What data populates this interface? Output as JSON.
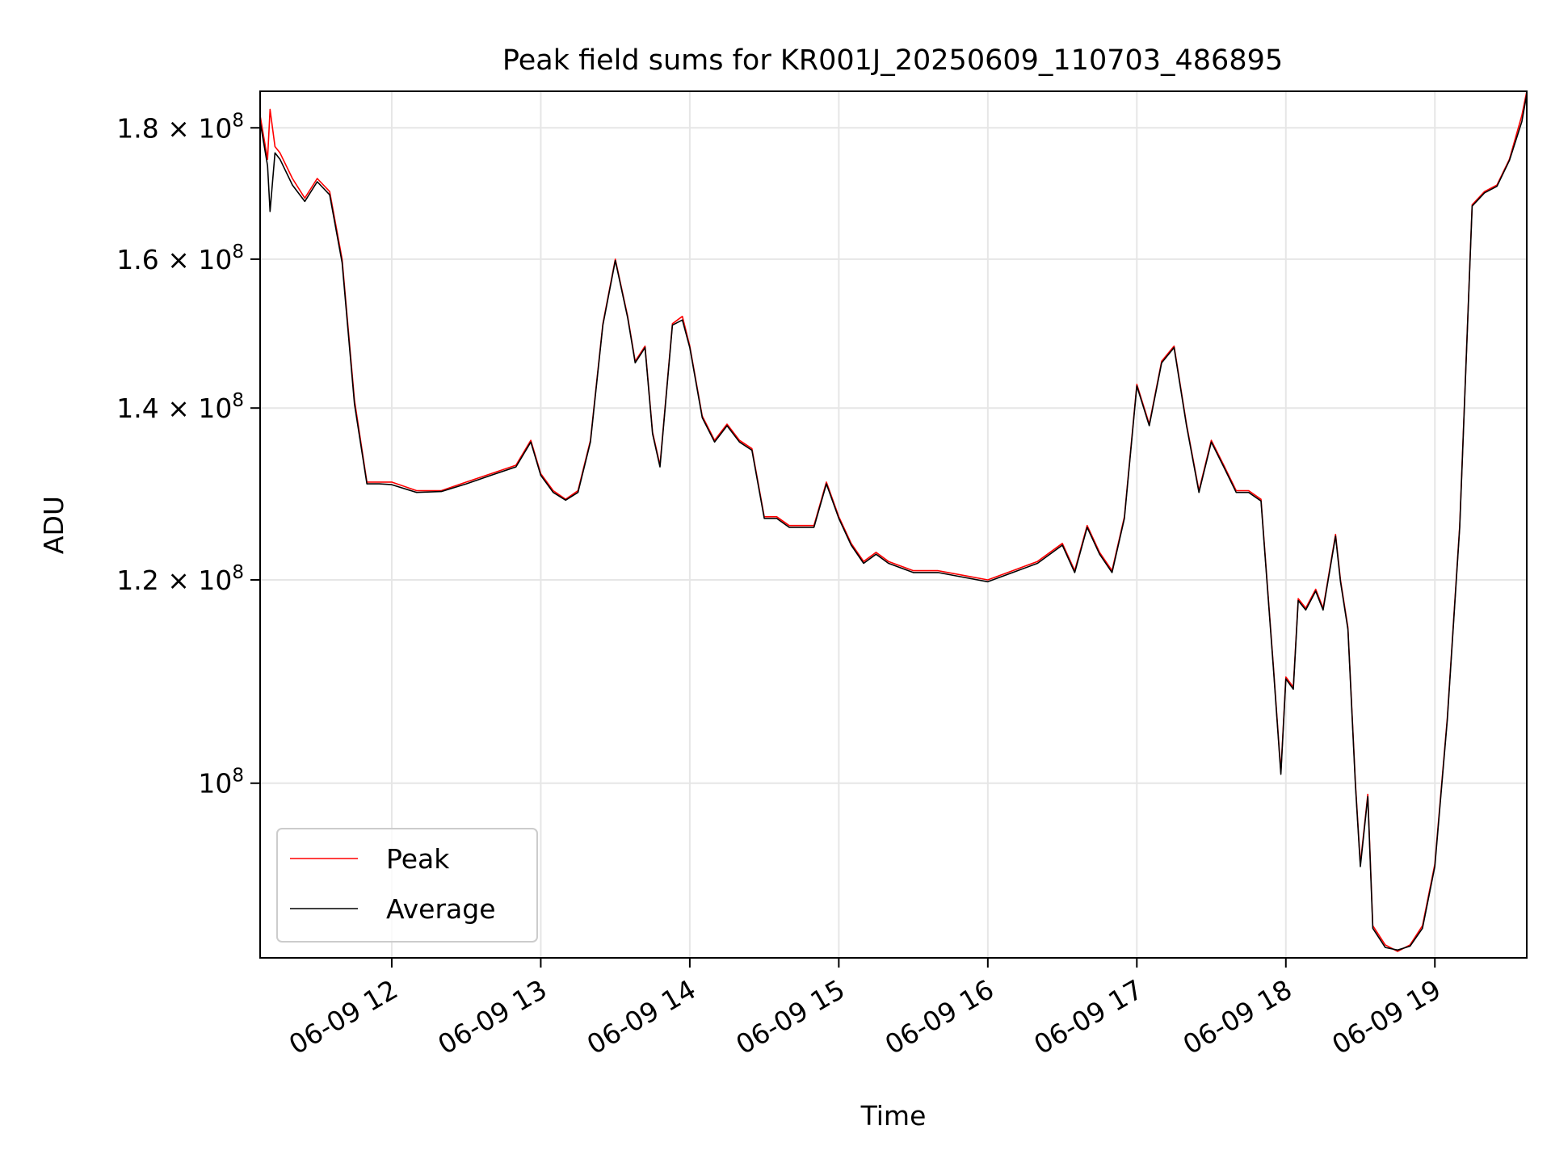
{
  "chart_data": {
    "type": "line",
    "title": "Peak field sums for KR001J_20250609_110703_486895",
    "xlabel": "Time",
    "ylabel": "ADU",
    "x_ticks": [
      "06-09 12",
      "06-09 13",
      "06-09 14",
      "06-09 15",
      "06-09 16",
      "06-09 17",
      "06-09 18",
      "06-09 19"
    ],
    "y_scale": "log",
    "y_ticks": [
      {
        "value": 100000000,
        "mant": "10",
        "exp": "8"
      },
      {
        "value": 120000000,
        "mant": "1.2 × 10",
        "exp": "8"
      },
      {
        "value": 140000000,
        "mant": "1.4 × 10",
        "exp": "8"
      },
      {
        "value": 160000000,
        "mant": "1.6 × 10",
        "exp": "8"
      },
      {
        "value": 180000000,
        "mant": "1.8 × 10",
        "exp": "8"
      }
    ],
    "xlim": [
      "2025-06-09 11:07",
      "2025-06-09 19:37"
    ],
    "ylim": [
      85500000,
      186000000
    ],
    "grid": true,
    "legend_position": "lower-left",
    "colors": {
      "peak": "#ff0000",
      "average": "#000000"
    },
    "series": [
      {
        "name": "Peak",
        "x": [
          "2025-06-09 11:07",
          "2025-06-09 11:10",
          "2025-06-09 11:11",
          "2025-06-09 11:13",
          "2025-06-09 11:15",
          "2025-06-09 11:20",
          "2025-06-09 11:25",
          "2025-06-09 11:30",
          "2025-06-09 11:35",
          "2025-06-09 11:40",
          "2025-06-09 11:45",
          "2025-06-09 11:50",
          "2025-06-09 11:55",
          "2025-06-09 12:00",
          "2025-06-09 12:10",
          "2025-06-09 12:20",
          "2025-06-09 12:30",
          "2025-06-09 12:40",
          "2025-06-09 12:50",
          "2025-06-09 12:56",
          "2025-06-09 13:00",
          "2025-06-09 13:05",
          "2025-06-09 13:10",
          "2025-06-09 13:15",
          "2025-06-09 13:20",
          "2025-06-09 13:25",
          "2025-06-09 13:30",
          "2025-06-09 13:35",
          "2025-06-09 13:38",
          "2025-06-09 13:42",
          "2025-06-09 13:45",
          "2025-06-09 13:48",
          "2025-06-09 13:53",
          "2025-06-09 13:57",
          "2025-06-09 14:00",
          "2025-06-09 14:05",
          "2025-06-09 14:10",
          "2025-06-09 14:15",
          "2025-06-09 14:20",
          "2025-06-09 14:25",
          "2025-06-09 14:30",
          "2025-06-09 14:35",
          "2025-06-09 14:40",
          "2025-06-09 14:45",
          "2025-06-09 14:50",
          "2025-06-09 14:55",
          "2025-06-09 15:00",
          "2025-06-09 15:05",
          "2025-06-09 15:10",
          "2025-06-09 15:15",
          "2025-06-09 15:20",
          "2025-06-09 15:30",
          "2025-06-09 15:40",
          "2025-06-09 15:50",
          "2025-06-09 16:00",
          "2025-06-09 16:10",
          "2025-06-09 16:20",
          "2025-06-09 16:30",
          "2025-06-09 16:35",
          "2025-06-09 16:40",
          "2025-06-09 16:45",
          "2025-06-09 16:50",
          "2025-06-09 16:55",
          "2025-06-09 17:00",
          "2025-06-09 17:05",
          "2025-06-09 17:10",
          "2025-06-09 17:15",
          "2025-06-09 17:20",
          "2025-06-09 17:25",
          "2025-06-09 17:30",
          "2025-06-09 17:35",
          "2025-06-09 17:40",
          "2025-06-09 17:45",
          "2025-06-09 17:50",
          "2025-06-09 17:55",
          "2025-06-09 17:58",
          "2025-06-09 18:00",
          "2025-06-09 18:03",
          "2025-06-09 18:05",
          "2025-06-09 18:08",
          "2025-06-09 18:12",
          "2025-06-09 18:15",
          "2025-06-09 18:20",
          "2025-06-09 18:22",
          "2025-06-09 18:25",
          "2025-06-09 18:28",
          "2025-06-09 18:30",
          "2025-06-09 18:33",
          "2025-06-09 18:35",
          "2025-06-09 18:40",
          "2025-06-09 18:45",
          "2025-06-09 18:50",
          "2025-06-09 18:55",
          "2025-06-09 19:00",
          "2025-06-09 19:05",
          "2025-06-09 19:10",
          "2025-06-09 19:15",
          "2025-06-09 19:20",
          "2025-06-09 19:25",
          "2025-06-09 19:30",
          "2025-06-09 19:35",
          "2025-06-09 19:37"
        ],
        "y": [
          182000000,
          175000000,
          183000000,
          177000000,
          176000000,
          172000000,
          169000000,
          172000000,
          170000000,
          160000000,
          141000000,
          131000000,
          131000000,
          131000000,
          130000000,
          130000000,
          131000000,
          132000000,
          133000000,
          136000000,
          132000000,
          130000000,
          129000000,
          130000000,
          136000000,
          151000000,
          160000000,
          152000000,
          146000000,
          148000000,
          137000000,
          133000000,
          151000000,
          152000000,
          148000000,
          139000000,
          136000000,
          138000000,
          136000000,
          135000000,
          127000000,
          127000000,
          126000000,
          126000000,
          126000000,
          131000000,
          127000000,
          124000000,
          122000000,
          123000000,
          122000000,
          121000000,
          121000000,
          120500000,
          120000000,
          121000000,
          122000000,
          124000000,
          121000000,
          126000000,
          123000000,
          121000000,
          127000000,
          143000000,
          138000000,
          146000000,
          148000000,
          138000000,
          130000000,
          136000000,
          133000000,
          130000000,
          130000000,
          129000000,
          111000000,
          101000000,
          110000000,
          109000000,
          118000000,
          117000000,
          119000000,
          117000000,
          125000000,
          120000000,
          115000000,
          100000000,
          93000000,
          99000000,
          88000000,
          86500000,
          86000000,
          86500000,
          88000000,
          93000000,
          106000000,
          126000000,
          168000000,
          170000000,
          171000000,
          175000000,
          182000000,
          186000000
        ]
      },
      {
        "name": "Average",
        "x": [
          "2025-06-09 11:07",
          "2025-06-09 11:10",
          "2025-06-09 11:11",
          "2025-06-09 11:13",
          "2025-06-09 11:15",
          "2025-06-09 11:20",
          "2025-06-09 11:25",
          "2025-06-09 11:30",
          "2025-06-09 11:35",
          "2025-06-09 11:40",
          "2025-06-09 11:45",
          "2025-06-09 11:50",
          "2025-06-09 11:55",
          "2025-06-09 12:00",
          "2025-06-09 12:10",
          "2025-06-09 12:20",
          "2025-06-09 12:30",
          "2025-06-09 12:40",
          "2025-06-09 12:50",
          "2025-06-09 12:56",
          "2025-06-09 13:00",
          "2025-06-09 13:05",
          "2025-06-09 13:10",
          "2025-06-09 13:15",
          "2025-06-09 13:20",
          "2025-06-09 13:25",
          "2025-06-09 13:30",
          "2025-06-09 13:35",
          "2025-06-09 13:38",
          "2025-06-09 13:42",
          "2025-06-09 13:45",
          "2025-06-09 13:48",
          "2025-06-09 13:53",
          "2025-06-09 13:57",
          "2025-06-09 14:00",
          "2025-06-09 14:05",
          "2025-06-09 14:10",
          "2025-06-09 14:15",
          "2025-06-09 14:20",
          "2025-06-09 14:25",
          "2025-06-09 14:30",
          "2025-06-09 14:35",
          "2025-06-09 14:40",
          "2025-06-09 14:45",
          "2025-06-09 14:50",
          "2025-06-09 14:55",
          "2025-06-09 15:00",
          "2025-06-09 15:05",
          "2025-06-09 15:10",
          "2025-06-09 15:15",
          "2025-06-09 15:20",
          "2025-06-09 15:30",
          "2025-06-09 15:40",
          "2025-06-09 15:50",
          "2025-06-09 16:00",
          "2025-06-09 16:10",
          "2025-06-09 16:20",
          "2025-06-09 16:30",
          "2025-06-09 16:35",
          "2025-06-09 16:40",
          "2025-06-09 16:45",
          "2025-06-09 16:50",
          "2025-06-09 16:55",
          "2025-06-09 17:00",
          "2025-06-09 17:05",
          "2025-06-09 17:10",
          "2025-06-09 17:15",
          "2025-06-09 17:20",
          "2025-06-09 17:25",
          "2025-06-09 17:30",
          "2025-06-09 17:35",
          "2025-06-09 17:40",
          "2025-06-09 17:45",
          "2025-06-09 17:50",
          "2025-06-09 17:55",
          "2025-06-09 17:58",
          "2025-06-09 18:00",
          "2025-06-09 18:03",
          "2025-06-09 18:05",
          "2025-06-09 18:08",
          "2025-06-09 18:12",
          "2025-06-09 18:15",
          "2025-06-09 18:20",
          "2025-06-09 18:22",
          "2025-06-09 18:25",
          "2025-06-09 18:28",
          "2025-06-09 18:30",
          "2025-06-09 18:33",
          "2025-06-09 18:35",
          "2025-06-09 18:40",
          "2025-06-09 18:45",
          "2025-06-09 18:50",
          "2025-06-09 18:55",
          "2025-06-09 19:00",
          "2025-06-09 19:05",
          "2025-06-09 19:10",
          "2025-06-09 19:15",
          "2025-06-09 19:20",
          "2025-06-09 19:25",
          "2025-06-09 19:30",
          "2025-06-09 19:35",
          "2025-06-09 19:37"
        ],
        "y": [
          181000000,
          174000000,
          167000000,
          176000000,
          175000000,
          171000000,
          168500000,
          171500000,
          169500000,
          159500000,
          140500000,
          130800000,
          130800000,
          130700000,
          129800000,
          129900000,
          130800000,
          131800000,
          132800000,
          135800000,
          131800000,
          129800000,
          128900000,
          129800000,
          135800000,
          150800000,
          159800000,
          151800000,
          145800000,
          147800000,
          136800000,
          132800000,
          150800000,
          151500000,
          147800000,
          138800000,
          135800000,
          137800000,
          135800000,
          134800000,
          126800000,
          126800000,
          125800000,
          125800000,
          125800000,
          130800000,
          126800000,
          123800000,
          121800000,
          122800000,
          121800000,
          120800000,
          120800000,
          120300000,
          119800000,
          120800000,
          121800000,
          123800000,
          120800000,
          125800000,
          122800000,
          120800000,
          126800000,
          142800000,
          137800000,
          145800000,
          147800000,
          137800000,
          129800000,
          135800000,
          132800000,
          129800000,
          129800000,
          128800000,
          110800000,
          100800000,
          109800000,
          108800000,
          117800000,
          116800000,
          118800000,
          116800000,
          124800000,
          119800000,
          114800000,
          99800000,
          92800000,
          98800000,
          87800000,
          86300000,
          86100000,
          86400000,
          87800000,
          92800000,
          105800000,
          125800000,
          167800000,
          169800000,
          170800000,
          174800000,
          181000000,
          185500000
        ]
      }
    ]
  }
}
